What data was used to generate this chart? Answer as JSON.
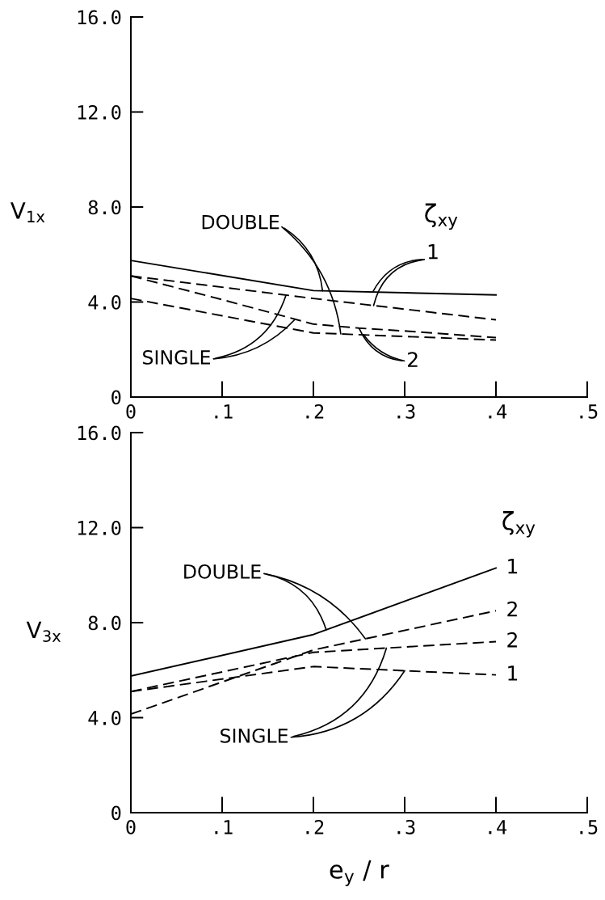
{
  "chart_data": [
    {
      "type": "line",
      "ylabel": "V$_{1x}$",
      "xlim": [
        0,
        0.5
      ],
      "xticks": [
        0,
        {
          "value": 0.1,
          "label": ".1"
        },
        {
          "value": 0.2,
          "label": ".2"
        },
        {
          "value": 0.3,
          "label": ".3"
        },
        {
          "value": 0.4,
          "label": ".4"
        },
        {
          "value": 0.5,
          "label": ".5"
        }
      ],
      "ylim": [
        0,
        16
      ],
      "yticks": [
        0,
        {
          "value": 4,
          "label": "4.0"
        },
        {
          "value": 8,
          "label": "8.0"
        },
        {
          "value": 12,
          "label": "12.0"
        },
        {
          "value": 16,
          "label": "16.0"
        }
      ],
      "series": [
        {
          "color": "#000000",
          "line_style": "solid",
          "x": [
            0,
            0.2,
            0.4
          ],
          "values": [
            5.75,
            4.48,
            4.3
          ]
        },
        {
          "color": "#000000",
          "line_style": "dashed",
          "x": [
            0,
            0.2,
            0.4
          ],
          "values": [
            5.1,
            4.15,
            3.25
          ]
        },
        {
          "color": "#000000",
          "line_style": "dashed",
          "x": [
            0,
            0.1,
            0.2,
            0.25,
            0.3,
            0.4
          ],
          "values": [
            5.1,
            4.1,
            3.07,
            2.9,
            2.78,
            2.5
          ]
        },
        {
          "color": "#000000",
          "line_style": "dashed",
          "x": [
            0,
            0.1,
            0.2,
            0.3,
            0.4
          ],
          "values": [
            4.15,
            3.42,
            2.7,
            2.55,
            2.4
          ]
        }
      ],
      "annotations": [
        {
          "text": "DOUBLE",
          "x": 0.21,
          "y": 4.47
        },
        "ζ$_{xy}$",
        {
          "text": "1",
          "x": 0.265,
          "y": 4.42
        },
        {
          "text": "SINGLE",
          "x": 0.17,
          "y": 4.29
        },
        {
          "text": "2",
          "x": 0.25,
          "y": 2.9
        }
      ]
    },
    {
      "type": "line",
      "ylabel": "V$_{3x}$",
      "xlabel": "e$_{y}$ / r",
      "xlim": [
        0,
        0.5
      ],
      "xticks": [
        0,
        {
          "value": 0.1,
          "label": ".1"
        },
        {
          "value": 0.2,
          "label": ".2"
        },
        {
          "value": 0.3,
          "label": ".3"
        },
        {
          "value": 0.4,
          "label": ".4"
        },
        {
          "value": 0.5,
          "label": ".5"
        }
      ],
      "ylim": [
        0,
        16
      ],
      "yticks": [
        0,
        {
          "value": 4,
          "label": "4.0"
        },
        {
          "value": 8,
          "label": "8.0"
        },
        {
          "value": 12,
          "label": "12.0"
        },
        {
          "value": 16,
          "label": "16.0"
        }
      ],
      "series": [
        {
          "color": "#000000",
          "line_style": "solid",
          "x": [
            0,
            0.2,
            0.4
          ],
          "values": [
            5.75,
            7.5,
            10.3
          ]
        },
        {
          "color": "#000000",
          "line_style": "dashed",
          "x": [
            0,
            0.2,
            0.4
          ],
          "values": [
            4.15,
            6.85,
            8.5
          ]
        },
        {
          "color": "#000000",
          "line_style": "dashed",
          "x": [
            0,
            0.2,
            0.4
          ],
          "values": [
            5.1,
            6.75,
            7.2
          ]
        },
        {
          "color": "#000000",
          "line_style": "dashed",
          "x": [
            0,
            0.2,
            0.4
          ],
          "values": [
            5.1,
            6.15,
            5.8
          ]
        }
      ],
      "annotations": [
        "ζ$_{xy}$",
        {
          "text": "DOUBLE",
          "x": 0.214,
          "y": 7.7
        },
        {
          "text": "1",
          "x": 0.4,
          "y": 10.3
        },
        {
          "text": "2",
          "x": 0.4,
          "y": 8.5
        },
        {
          "text": "2",
          "x": 0.4,
          "y": 7.2
        },
        {
          "text": "1",
          "x": 0.4,
          "y": 5.8
        },
        {
          "text": "SINGLE",
          "x": 0.28,
          "y": 6.93
        }
      ]
    }
  ]
}
